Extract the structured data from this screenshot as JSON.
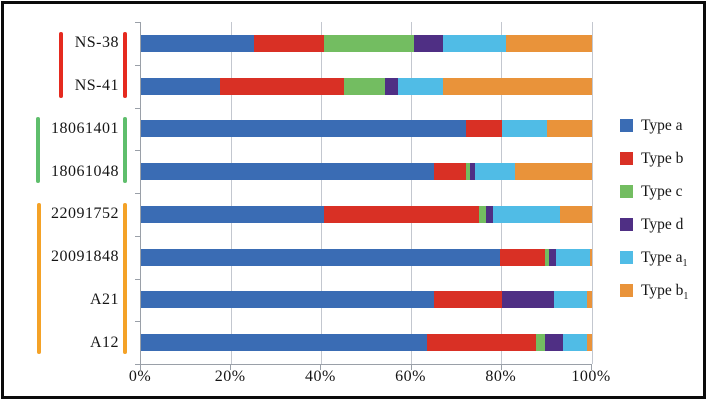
{
  "chart_data": {
    "type": "bar",
    "orientation": "horizontal",
    "stacked": true,
    "unit": "percent",
    "title": "",
    "xlabel": "",
    "ylabel": "",
    "xlim": [
      0,
      100
    ],
    "x_ticks": [
      "0%",
      "20%",
      "40%",
      "60%",
      "80%",
      "100%"
    ],
    "grid": "vertical",
    "legend_position": "right",
    "categories": [
      "NS-38",
      "NS-41",
      "18061401",
      "18061048",
      "22091752",
      "20091848",
      "A21",
      "A12"
    ],
    "series": [
      {
        "name": "Type a",
        "label": "Type a",
        "sub": "",
        "color": "#3A6CB4",
        "values": [
          25,
          17.5,
          72,
          65,
          40.5,
          79.5,
          65,
          63.5
        ]
      },
      {
        "name": "Type b",
        "label": "Type b",
        "sub": "",
        "color": "#D93025",
        "values": [
          15.5,
          27.5,
          8,
          7,
          34.5,
          10,
          15,
          24
        ]
      },
      {
        "name": "Type c",
        "label": "Type c",
        "sub": "",
        "color": "#73BD61",
        "values": [
          20,
          9,
          0,
          1,
          1.5,
          1,
          0,
          2
        ]
      },
      {
        "name": "Type d",
        "label": "Type d",
        "sub": "",
        "color": "#4F2F84",
        "values": [
          6.5,
          3,
          0,
          1,
          1.5,
          1.5,
          11.5,
          4
        ]
      },
      {
        "name": "Type a1",
        "label": "Type a",
        "sub": "1",
        "color": "#50BCE6",
        "values": [
          14,
          10,
          10,
          9,
          15,
          7.5,
          7.5,
          5.5
        ]
      },
      {
        "name": "Type b1",
        "label": "Type b",
        "sub": "1",
        "color": "#E9933A",
        "values": [
          19,
          33,
          10,
          17,
          7,
          0.5,
          1,
          1
        ]
      }
    ],
    "category_groups": [
      {
        "categories": [
          "NS-38",
          "NS-41"
        ],
        "start": 0,
        "end": 1,
        "color": "#E52A1F"
      },
      {
        "categories": [
          "18061401",
          "18061048"
        ],
        "start": 2,
        "end": 3,
        "color": "#5FBE6C"
      },
      {
        "categories": [
          "22091752",
          "20091848",
          "A21",
          "A12"
        ],
        "start": 4,
        "end": 7,
        "color": "#F4A227"
      }
    ],
    "colors": {
      "gridline": "#c3c7cf",
      "axis": "#9aa0a8",
      "text": "#151515"
    }
  }
}
